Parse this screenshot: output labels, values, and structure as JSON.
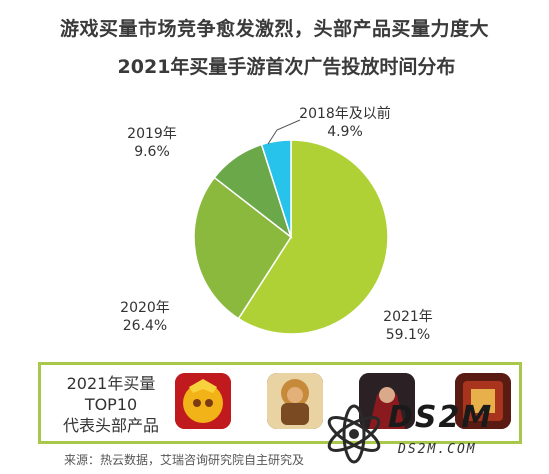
{
  "title_line1": "游戏买量市场竞争愈发激烈，头部产品买量力度大",
  "title_line2": "2021年买量手游首次广告投放时间分布",
  "chart_data": {
    "type": "pie",
    "title": "2021年买量手游首次广告投放时间分布",
    "start": "top-clockwise",
    "slices": [
      {
        "label": "2021年",
        "value_label": "59.1%",
        "value": 59.1,
        "color": "#afd136"
      },
      {
        "label": "2020年",
        "value_label": "26.4%",
        "value": 26.4,
        "color": "#8ab93e"
      },
      {
        "label": "2019年",
        "value_label": "9.6%",
        "value": 9.6,
        "color": "#6aa84a"
      },
      {
        "label": "2018年及以前",
        "value_label": "4.9%",
        "value": 4.9,
        "color": "#27c3ea"
      }
    ]
  },
  "banner": {
    "line1": "2021年买量",
    "line2": "TOP10",
    "line3": "代表头部产品",
    "border_color": "#a7c84a"
  },
  "source": "来源：热云数据，艾瑞咨询研究院自主研究及",
  "watermark": {
    "main": "DS2M",
    "sub": "DS2M.COM"
  }
}
